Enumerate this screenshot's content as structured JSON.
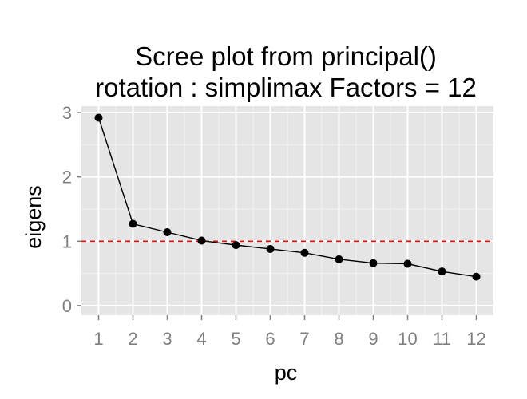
{
  "chart_data": {
    "type": "line",
    "title": "Scree plot from principal()",
    "subtitle": "rotation : simplimax Factors = 12",
    "xlabel": "pc",
    "ylabel": "eigens",
    "x": [
      1,
      2,
      3,
      4,
      5,
      6,
      7,
      8,
      9,
      10,
      11,
      12
    ],
    "y": [
      2.92,
      1.27,
      1.14,
      1.01,
      0.94,
      0.88,
      0.82,
      0.72,
      0.66,
      0.65,
      0.53,
      0.45
    ],
    "xticks": [
      1,
      2,
      3,
      4,
      5,
      6,
      7,
      8,
      9,
      10,
      11,
      12
    ],
    "yticks": [
      0,
      1,
      2,
      3
    ],
    "xlim": [
      0.5,
      12.5
    ],
    "ylim": [
      -0.15,
      3.1
    ],
    "reference_line": {
      "y": 1,
      "color": "#ff0000",
      "style": "dashed"
    },
    "grid": true,
    "colors": {
      "panel": "#e5e5e5",
      "grid_major": "#ffffff",
      "grid_minor": "#f2f2f2",
      "line": "#000000",
      "points": "#000000"
    }
  }
}
